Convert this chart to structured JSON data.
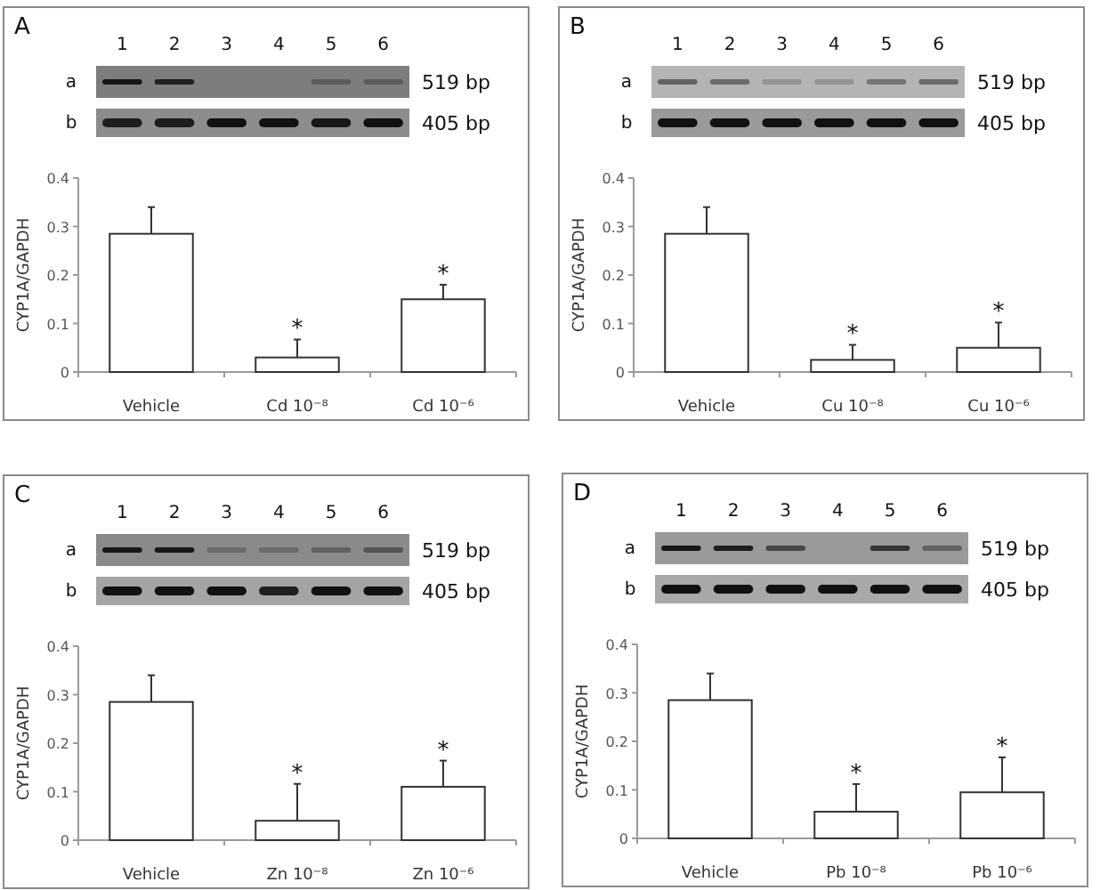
{
  "chart_data": [
    {
      "type": "bar",
      "title": "A",
      "categories": [
        "Vehicle",
        "Cd 10⁻⁸",
        "Cd 10⁻⁶"
      ],
      "values": [
        0.285,
        0.03,
        0.15
      ],
      "errors": [
        [
          0.285,
          0.34
        ],
        [
          0.03,
          0.067
        ],
        [
          0.15,
          0.18
        ]
      ],
      "color": "#ffffff",
      "ylabel": "CYP1A/GAPDH",
      "ylim": [
        0,
        0.4
      ],
      "yticks": [
        0,
        0.1,
        0.2,
        0.3,
        0.4
      ],
      "annotations": [
        "1",
        "2",
        "3",
        "4",
        "5",
        "6",
        "a",
        "b",
        "519 bp",
        "405 bp",
        {
          "text": "*",
          "x": "Cd 10⁻⁸",
          "y": 0.03
        },
        {
          "text": "*",
          "x": "Cd 10⁻⁶",
          "y": 0.15
        }
      ]
    },
    {
      "type": "bar",
      "title": "B",
      "categories": [
        "Vehicle",
        "Cu 10⁻⁸",
        "Cu 10⁻⁶"
      ],
      "values": [
        0.285,
        0.025,
        0.05
      ],
      "errors": [
        [
          0.285,
          0.34
        ],
        [
          0.025,
          0.056
        ],
        [
          0.05,
          0.102
        ]
      ],
      "color": "#ffffff",
      "ylabel": "CYP1A/GAPDH",
      "ylim": [
        0,
        0.4
      ],
      "yticks": [
        0,
        0.1,
        0.2,
        0.3,
        0.4
      ],
      "annotations": [
        "1",
        "2",
        "3",
        "4",
        "5",
        "6",
        "a",
        "b",
        "519 bp",
        "405 bp",
        {
          "text": "*",
          "x": "Cu 10⁻⁸",
          "y": 0.025
        },
        {
          "text": "*",
          "x": "Cu 10⁻⁶",
          "y": 0.05
        }
      ]
    },
    {
      "type": "bar",
      "title": "C",
      "categories": [
        "Vehicle",
        "Zn 10⁻⁸",
        "Zn 10⁻⁶"
      ],
      "values": [
        0.285,
        0.04,
        0.11
      ],
      "errors": [
        [
          0.285,
          0.34
        ],
        [
          0.04,
          0.116
        ],
        [
          0.11,
          0.164
        ]
      ],
      "color": "#ffffff",
      "ylabel": "CYP1A/GAPDH",
      "ylim": [
        0,
        0.4
      ],
      "yticks": [
        0,
        0.1,
        0.2,
        0.3,
        0.4
      ],
      "annotations": [
        "1",
        "2",
        "3",
        "4",
        "5",
        "6",
        "a",
        "b",
        "519 bp",
        "405 bp",
        {
          "text": "*",
          "x": "Zn 10⁻⁸",
          "y": 0.04
        },
        {
          "text": "*",
          "x": "Zn 10⁻⁶",
          "y": 0.11
        }
      ]
    },
    {
      "type": "bar",
      "title": "D",
      "categories": [
        "Vehicle",
        "Pb 10⁻⁸",
        "Pb 10⁻⁶"
      ],
      "values": [
        0.285,
        0.055,
        0.095
      ],
      "errors": [
        [
          0.285,
          0.34
        ],
        [
          0.055,
          0.112
        ],
        [
          0.095,
          0.167
        ]
      ],
      "color": "#ffffff",
      "ylabel": "CYP1A/GAPDH",
      "ylim": [
        0,
        0.4
      ],
      "yticks": [
        0,
        0.1,
        0.2,
        0.3,
        0.4
      ],
      "annotations": [
        "1",
        "2",
        "3",
        "4",
        "5",
        "6",
        "a",
        "b",
        "519 bp",
        "405 bp",
        {
          "text": "*",
          "x": "Pb 10⁻⁸",
          "y": 0.055
        },
        {
          "text": "*",
          "x": "Pb 10⁻⁶",
          "y": 0.095
        }
      ]
    }
  ]
}
